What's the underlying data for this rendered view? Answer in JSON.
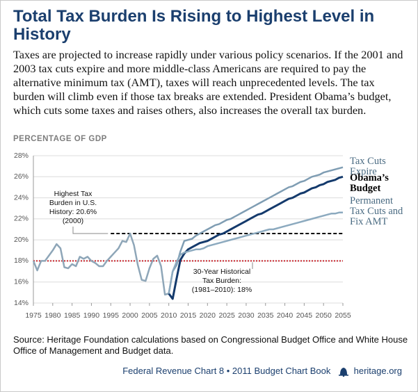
{
  "chart_data": {
    "type": "line",
    "title": "Total Tax Burden Is Rising to Highest Level in History",
    "subtitle": "Taxes are projected to increase rapidly under various policy scenarios. If the 2001 and 2003 tax cuts expire and more middle-class Americans are required to pay the alternative minimum tax (AMT), taxes will reach unprecedented levels. The tax burden will climb even if those tax breaks are extended. President Obama’s budget, which cuts some taxes and raises others, also increases the overall tax burden.",
    "y_label": "PERCENTAGE OF GDP",
    "x": [
      1975,
      1976,
      1977,
      1978,
      1979,
      1980,
      1981,
      1982,
      1983,
      1984,
      1985,
      1986,
      1987,
      1988,
      1989,
      1990,
      1991,
      1992,
      1993,
      1994,
      1995,
      1996,
      1997,
      1998,
      1999,
      2000,
      2001,
      2002,
      2003,
      2004,
      2005,
      2006,
      2007,
      2008,
      2009,
      2010,
      2011,
      2012,
      2013,
      2014,
      2015,
      2016,
      2017,
      2018,
      2019,
      2020,
      2021,
      2022,
      2023,
      2024,
      2025,
      2026,
      2027,
      2028,
      2029,
      2030,
      2031,
      2032,
      2033,
      2034,
      2035,
      2036,
      2037,
      2038,
      2039,
      2040,
      2041,
      2042,
      2043,
      2044,
      2045,
      2046,
      2047,
      2048,
      2049,
      2050,
      2051,
      2052,
      2053,
      2054,
      2055
    ],
    "series": [
      {
        "color": "#8ea6b8",
        "values": [
          18.0,
          17.1,
          18.0,
          18.0,
          18.5,
          19.0,
          19.6,
          19.2,
          17.4,
          17.3,
          17.7,
          17.5,
          18.4,
          18.2,
          18.4,
          18.0,
          17.8,
          17.5,
          17.5,
          18.0,
          18.4,
          18.8,
          19.2,
          19.9,
          19.8,
          20.6,
          19.5,
          17.6,
          16.2,
          16.1,
          17.3,
          18.2,
          18.5,
          17.5,
          14.8,
          14.9,
          null,
          null,
          null,
          null,
          null,
          null,
          null,
          null,
          null,
          null,
          null,
          null,
          null,
          null,
          null,
          null,
          null,
          null,
          null,
          null,
          null,
          null,
          null,
          null,
          null,
          null,
          null,
          null,
          null,
          null,
          null,
          null,
          null,
          null,
          null,
          null,
          null,
          null,
          null,
          null,
          null,
          null,
          null,
          null,
          null
        ]
      },
      {
        "name": "Tax Cuts Expire",
        "color": "#7f9db3",
        "values": [
          null,
          null,
          null,
          null,
          null,
          null,
          null,
          null,
          null,
          null,
          null,
          null,
          null,
          null,
          null,
          null,
          null,
          null,
          null,
          null,
          null,
          null,
          null,
          null,
          null,
          null,
          null,
          null,
          null,
          null,
          null,
          null,
          null,
          null,
          null,
          14.9,
          17.0,
          17.6,
          18.9,
          19.9,
          20.0,
          20.1,
          20.4,
          20.6,
          20.8,
          21.0,
          21.2,
          21.4,
          21.5,
          21.7,
          21.9,
          22.0,
          22.2,
          22.4,
          22.6,
          22.8,
          23.0,
          23.2,
          23.4,
          23.6,
          23.8,
          24.0,
          24.2,
          24.4,
          24.6,
          24.8,
          25.0,
          25.1,
          25.3,
          25.5,
          25.6,
          25.8,
          26.0,
          26.1,
          26.2,
          26.4,
          26.5,
          26.6,
          26.7,
          26.8,
          26.9
        ]
      },
      {
        "name": "Obama’s Budget",
        "color": "#143a6c",
        "values": [
          null,
          null,
          null,
          null,
          null,
          null,
          null,
          null,
          null,
          null,
          null,
          null,
          null,
          null,
          null,
          null,
          null,
          null,
          null,
          null,
          null,
          null,
          null,
          null,
          null,
          null,
          null,
          null,
          null,
          null,
          null,
          null,
          null,
          null,
          null,
          14.9,
          14.4,
          16.3,
          18.1,
          18.7,
          19.1,
          19.3,
          19.5,
          19.7,
          19.8,
          19.9,
          20.1,
          20.3,
          20.5,
          20.6,
          20.8,
          21.0,
          21.2,
          21.4,
          21.6,
          21.8,
          22.0,
          22.2,
          22.4,
          22.5,
          22.7,
          22.9,
          23.1,
          23.3,
          23.5,
          23.7,
          23.9,
          24.0,
          24.2,
          24.4,
          24.5,
          24.7,
          24.9,
          25.0,
          25.2,
          25.3,
          25.5,
          25.6,
          25.7,
          25.9,
          26.0
        ]
      },
      {
        "name": "Permanent Tax Cuts and Fix AMT",
        "color": "#8caabf",
        "values": [
          null,
          null,
          null,
          null,
          null,
          null,
          null,
          null,
          null,
          null,
          null,
          null,
          null,
          null,
          null,
          null,
          null,
          null,
          null,
          null,
          null,
          null,
          null,
          null,
          null,
          null,
          null,
          null,
          null,
          null,
          null,
          null,
          null,
          null,
          null,
          14.9,
          17.0,
          17.9,
          18.6,
          18.8,
          18.9,
          19.0,
          19.1,
          19.1,
          19.2,
          19.4,
          19.5,
          19.6,
          19.7,
          19.8,
          19.9,
          20.0,
          20.1,
          20.2,
          20.3,
          20.4,
          20.5,
          20.6,
          20.7,
          20.8,
          20.9,
          21.0,
          21.0,
          21.1,
          21.2,
          21.3,
          21.4,
          21.5,
          21.6,
          21.7,
          21.8,
          21.9,
          22.0,
          22.1,
          22.2,
          22.3,
          22.4,
          22.5,
          22.5,
          22.6,
          22.6
        ]
      }
    ],
    "reference_lines": [
      {
        "value": 20.6,
        "from": 1995,
        "color": "#000000",
        "dash": "dashed",
        "text_lines": [
          "Highest Tax",
          "Burden in U.S.",
          "History: 20.6%",
          "(2000)"
        ]
      },
      {
        "value": 18,
        "color": "#c8242b",
        "dash": "dotted",
        "text_lines": [
          "30-Year Historical",
          "Tax Burden:",
          "(1981–2010): 18%"
        ]
      }
    ],
    "xlim": [
      1975,
      2055
    ],
    "xticks": [
      1975,
      1980,
      1985,
      1990,
      1995,
      2000,
      2005,
      2010,
      2015,
      2020,
      2025,
      2030,
      2035,
      2040,
      2045,
      2050,
      2055
    ],
    "ylim": [
      14,
      28
    ],
    "yticks": [
      {
        "value": 14,
        "label": "14%"
      },
      {
        "value": 16,
        "label": "16%"
      },
      {
        "value": 18,
        "label": "18%"
      },
      {
        "value": 20,
        "label": "20%"
      },
      {
        "value": 22,
        "label": "22%"
      },
      {
        "value": 24,
        "label": "24%"
      },
      {
        "value": 26,
        "label": "26%"
      },
      {
        "value": 28,
        "label": "28%"
      }
    ],
    "grid": true,
    "source": "Source: Heritage Foundation calculations based on Congressional Budget Office and White House Office of Management and Budget data.",
    "footer": "Federal Revenue Chart 8 • 2011 Budget Chart Book",
    "footer_site": "heritage.org"
  }
}
